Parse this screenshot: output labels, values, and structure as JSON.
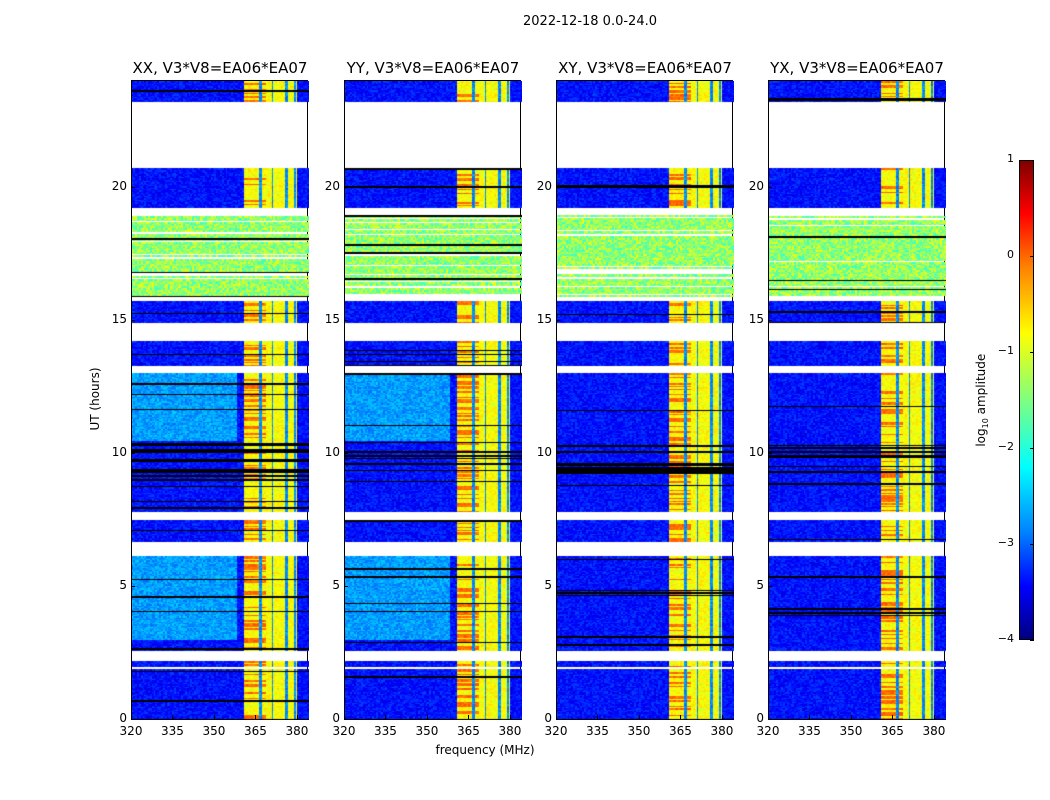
{
  "chart_data": {
    "type": "heatmap",
    "title": "2022-12-18 0.0-24.0",
    "xlabel": "frequency (MHz)",
    "ylabel": "UT (hours)",
    "xlim": [
      320,
      384
    ],
    "ylim": [
      0,
      24
    ],
    "xticks": [
      "320",
      "335",
      "350",
      "365",
      "380"
    ],
    "xtick_values": [
      320,
      335,
      350,
      365,
      380
    ],
    "yticks": [
      "0",
      "5",
      "10",
      "15",
      "20"
    ],
    "ytick_values": [
      0,
      5,
      10,
      15,
      20
    ],
    "panels": [
      {
        "title": "XX, V3*V8=EA06*EA07",
        "cyan_low_freq": true
      },
      {
        "title": "YY, V3*V8=EA06*EA07",
        "cyan_low_freq": true
      },
      {
        "title": "XY, V3*V8=EA06*EA07",
        "cyan_low_freq": false
      },
      {
        "title": "YX, V3*V8=EA06*EA07",
        "cyan_low_freq": false
      }
    ],
    "flagged_hours": [
      [
        20.7,
        23.2
      ],
      [
        18.95,
        19.25
      ],
      [
        15.7,
        15.9
      ],
      [
        14.2,
        14.9
      ],
      [
        13.0,
        13.3
      ],
      [
        7.5,
        7.8
      ],
      [
        6.15,
        6.7
      ],
      [
        2.2,
        2.6
      ],
      [
        1.9,
        2.0
      ]
    ],
    "rfi_hours": [
      15.9,
      18.95
    ],
    "bright_band_mhz": [
      361,
      380
    ],
    "band_gaps_mhz": [
      366.5,
      371,
      376,
      379
    ],
    "colorbar": {
      "label": "log10 amplitude",
      "range": [
        -4,
        1
      ],
      "ticks": [
        "1",
        "0",
        "−1",
        "−2",
        "−3",
        "−4"
      ],
      "tick_values": [
        1,
        0,
        -1,
        -2,
        -3,
        -4
      ]
    }
  }
}
